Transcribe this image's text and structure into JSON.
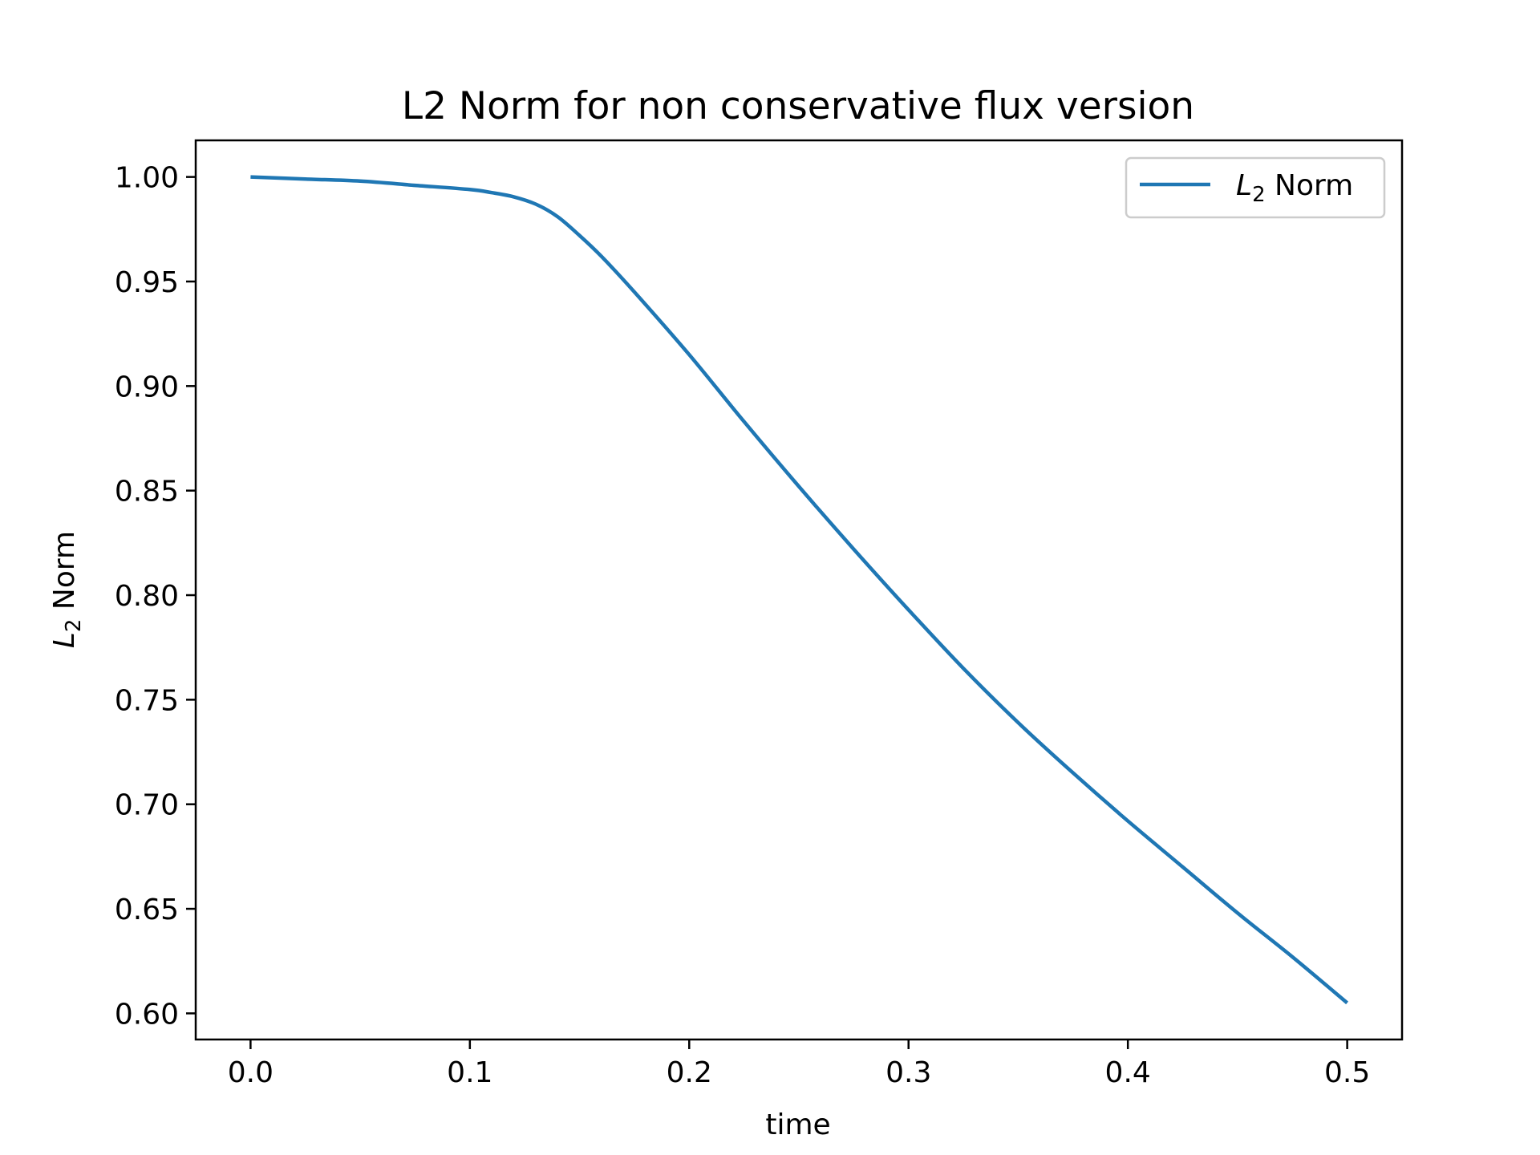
{
  "chart_data": {
    "type": "line",
    "title": "L2 Norm for non conservative flux version",
    "xlabel": "time",
    "ylabel": {
      "main": "L",
      "sub": "2",
      "rest": " Norm"
    },
    "xlim": [
      -0.025,
      0.525
    ],
    "ylim": [
      0.5875,
      1.0175
    ],
    "xticks": [
      {
        "value": 0.0,
        "label": "0.0"
      },
      {
        "value": 0.1,
        "label": "0.1"
      },
      {
        "value": 0.2,
        "label": "0.2"
      },
      {
        "value": 0.3,
        "label": "0.3"
      },
      {
        "value": 0.4,
        "label": "0.4"
      },
      {
        "value": 0.5,
        "label": "0.5"
      }
    ],
    "yticks": [
      {
        "value": 0.6,
        "label": "0.60"
      },
      {
        "value": 0.65,
        "label": "0.65"
      },
      {
        "value": 0.7,
        "label": "0.70"
      },
      {
        "value": 0.75,
        "label": "0.75"
      },
      {
        "value": 0.8,
        "label": "0.80"
      },
      {
        "value": 0.85,
        "label": "0.85"
      },
      {
        "value": 0.9,
        "label": "0.90"
      },
      {
        "value": 0.95,
        "label": "0.95"
      },
      {
        "value": 1.0,
        "label": "1.00"
      }
    ],
    "grid": false,
    "legend_position": "top-right",
    "series": [
      {
        "name": {
          "main": "L",
          "sub": "2",
          "rest": " Norm"
        },
        "color": "#1f77b4",
        "x": [
          0.0,
          0.025,
          0.05,
          0.075,
          0.1,
          0.11,
          0.12,
          0.13,
          0.14,
          0.15,
          0.16,
          0.175,
          0.2,
          0.225,
          0.25,
          0.275,
          0.3,
          0.325,
          0.35,
          0.375,
          0.4,
          0.425,
          0.45,
          0.475,
          0.5
        ],
        "y": [
          1.0,
          0.999,
          0.998,
          0.996,
          0.994,
          0.9925,
          0.9905,
          0.987,
          0.981,
          0.972,
          0.962,
          0.945,
          0.915,
          0.883,
          0.852,
          0.822,
          0.793,
          0.765,
          0.739,
          0.715,
          0.692,
          0.67,
          0.648,
          0.627,
          0.605
        ]
      }
    ]
  }
}
